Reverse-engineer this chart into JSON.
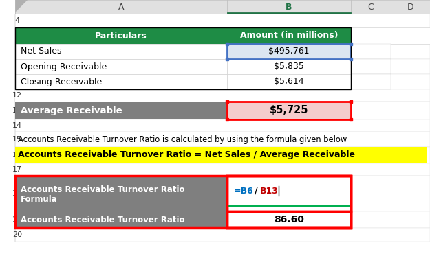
{
  "fig_width": 6.25,
  "fig_height": 3.73,
  "dpi": 100,
  "bg_color": "#ffffff",
  "col_header_bg": "#e0e0e0",
  "col_header_text": "#000000",
  "green_header_bg": "#1e8c45",
  "green_header_text": "#ffffff",
  "gray_row_bg": "#7f7f7f",
  "gray_row_text": "#ffffff",
  "yellow_bg": "#ffff00",
  "pink_bg": "#f4cccc",
  "light_blue_bg": "#dce6f1",
  "white_bg": "#ffffff",
  "header_row5_colA": "Particulars",
  "header_row5_colB": "Amount (in millions)",
  "row6_A": "Net Sales",
  "row6_B": "$495,761",
  "row7_A": "Opening Receivable",
  "row7_B": "$5,835",
  "row8_A": "Closing Receivable",
  "row8_B": "$5,614",
  "row13_A": "Average Receivable",
  "row13_B": "$5,725",
  "row15_text": "Accounts Receivable Turnover Ratio is calculated by using the formula given below",
  "row16_text": "Accounts Receivable Turnover Ratio = Net Sales / Average Receivable",
  "row18_A_line1": "Accounts Receivable Turnover Ratio",
  "row18_A_line2": "Formula",
  "row19_A": "Accounts Receivable Turnover Ratio",
  "row19_B": "86.60",
  "formula_blue": "#0070c0",
  "formula_red": "#c00000",
  "border_blue": "#4472c4",
  "border_red": "#ff0000",
  "border_green": "#00b050",
  "text_black": "#000000",
  "corner_tri_color": "#b0b0b0",
  "col_B_selected_green": "#217346"
}
